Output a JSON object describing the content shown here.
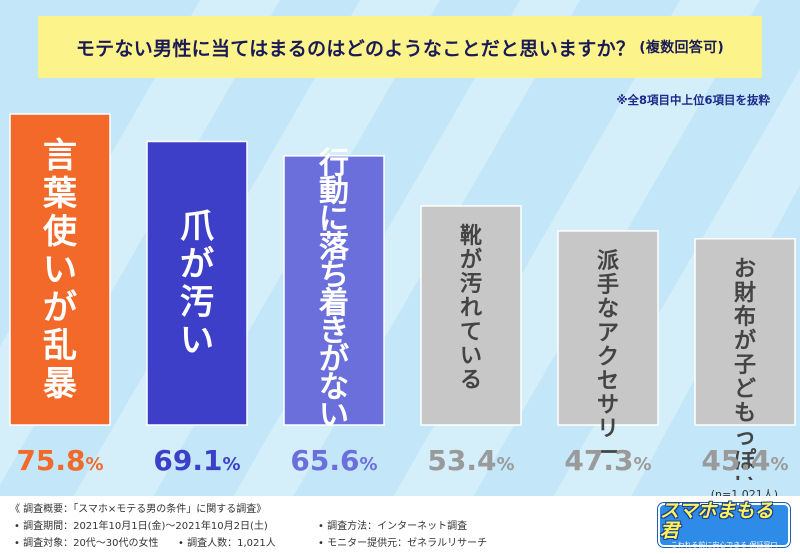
{
  "title": "モテない男性に当てはまるのはどのようなことだと思いますか？",
  "title_sub": "(複数回答可)",
  "note": "※全8項目中上位6項目を抜粋",
  "chart_data": {
    "type": "bar",
    "title": "モテない男性に当てはまるのはどのようなことだと思いますか？(複数回答可)",
    "categories": [
      "言葉使いが乱暴",
      "爪が汚い",
      "行動に落ち着きがない",
      "靴が汚れている",
      "派手なアクセサリー",
      "お財布が子どもっぽい"
    ],
    "values": [
      75.8,
      69.1,
      65.6,
      53.4,
      47.3,
      45.4
    ],
    "labels": [
      "75.8%",
      "69.1%",
      "65.6%",
      "53.4%",
      "47.3%",
      "45.4%"
    ],
    "unit": "%",
    "ylim": [
      0,
      100
    ],
    "colors": [
      "#f2692a",
      "#3d3fc9",
      "#6b6fdc",
      "#c7c7c7",
      "#c7c7c7",
      "#c7c7c7"
    ],
    "label_colors": [
      "#f2692a",
      "#3d3fc9",
      "#6b6fdc",
      "#9a9a9a",
      "#9a9a9a",
      "#9a9a9a"
    ],
    "text_colors": [
      "#ffffff",
      "#ffffff",
      "#ffffff",
      "#444444",
      "#444444",
      "#444444"
    ]
  },
  "n_note": "(n=1,021人)",
  "footer": {
    "heading": "《 調査概要：「スマホ×モテる男の条件」に関する調査》",
    "period": "• 調査期間：2021年10月1日(金)～2021年10月2日(土)",
    "method": "• 調査方法：インターネット調査",
    "target": "• 調査対象：20代～30代の女性",
    "count": "• 調査人数：1,021人",
    "provider": "• モニター提供元：ゼネラルリサーチ"
  },
  "logo": {
    "main": "スマホまもる君",
    "tag": "こわれる前に安心できる 保証窓口"
  }
}
